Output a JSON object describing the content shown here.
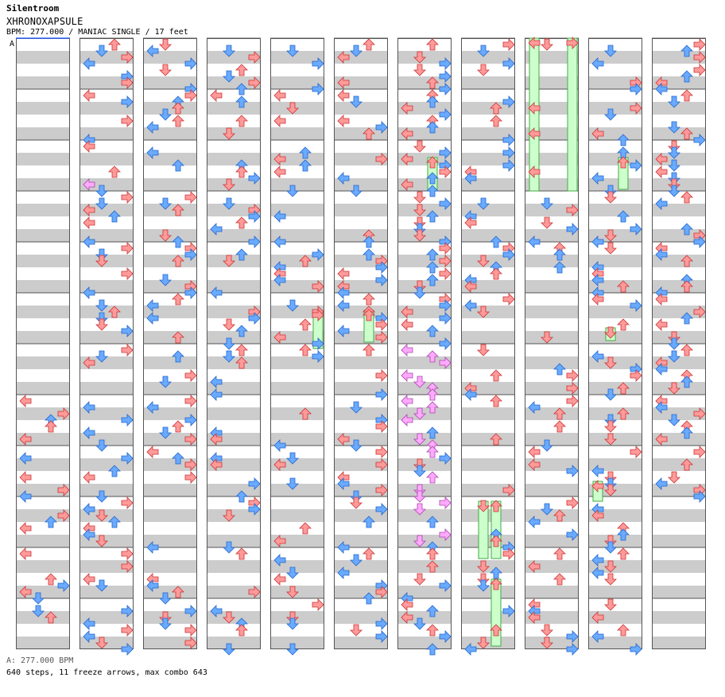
{
  "header": {
    "artist": "Silentroom",
    "title": "XHRONOXAPSULE",
    "info": "BPM: 277.000 / MANIAC SINGLE / 17 feet"
  },
  "bpm_marker": "A",
  "footer": {
    "bpm_legend": "A: 277.000 BPM",
    "stats": "640 steps, 11 freeze arrows, max combo 643"
  },
  "colors": {
    "quarter_note": "#ff9a9a",
    "eighth_note": "#6aaaff",
    "sixteenth_note": "#ffaaff",
    "freeze_body": "#ccffcc",
    "freeze_border": "#44aa44",
    "stripe": "#cccccc",
    "frame": "#555555"
  },
  "chart_layout": {
    "columns": 11,
    "measures_per_column": 12,
    "lanes": [
      "left",
      "down",
      "up",
      "right"
    ]
  },
  "icons": [
    "left-arrow-icon",
    "down-arrow-icon",
    "up-arrow-icon",
    "right-arrow-icon",
    "freeze-arrow"
  ]
}
